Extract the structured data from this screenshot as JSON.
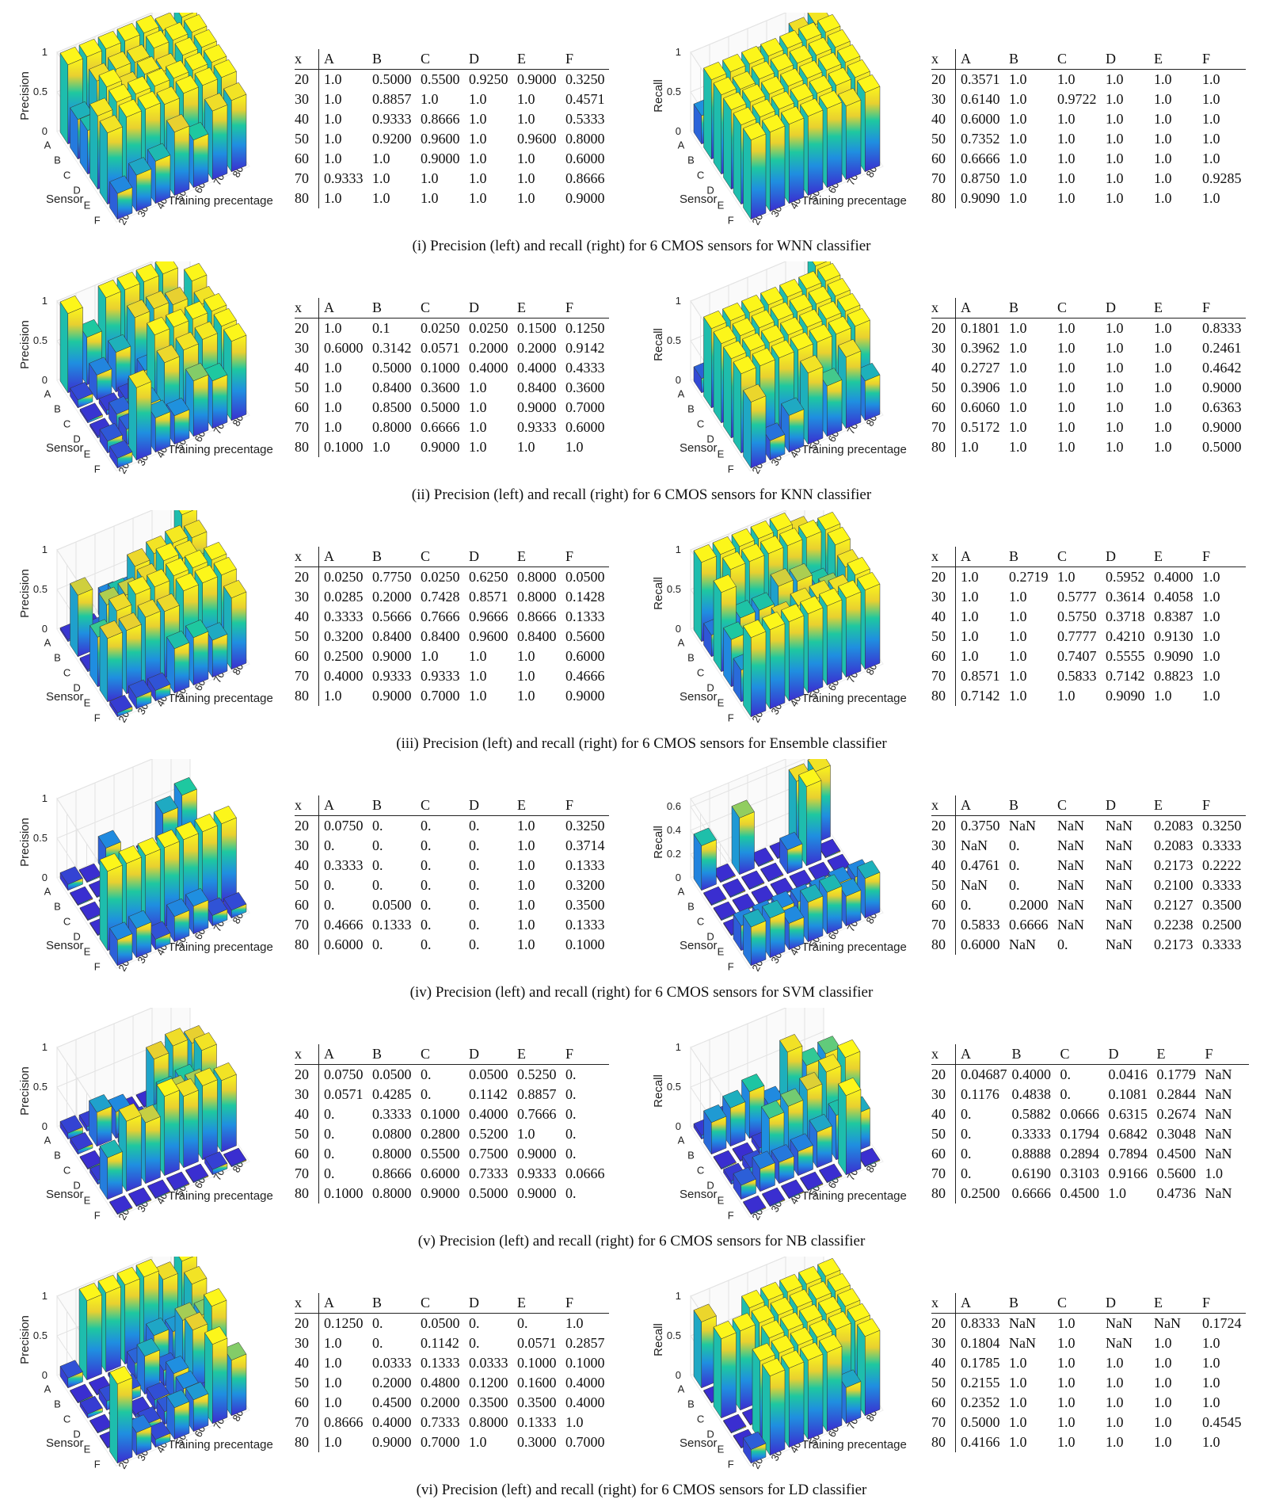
{
  "labels": {
    "sensor_axis": "Sensor",
    "training_axis": "Training precentage",
    "precision_axis": "Precision",
    "recall_axis": "Recall"
  },
  "table_header": [
    "x",
    "A",
    "B",
    "C",
    "D",
    "E",
    "F"
  ],
  "chart_data": [
    {
      "type": "bar3d",
      "classifier": "WNN",
      "caption": "(i) Precision (left) and recall (right) for 6 CMOS sensors for WNN classifier",
      "sensors": [
        "A",
        "B",
        "C",
        "D",
        "E",
        "F"
      ],
      "training": [
        "20",
        "30",
        "40",
        "50",
        "60",
        "70",
        "80"
      ],
      "precision": {
        "zticks": [
          "0",
          "0.5",
          "1"
        ],
        "zmax": 1,
        "rows": [
          [
            "20",
            "1.0",
            "0.5000",
            "0.5500",
            "0.9250",
            "0.9000",
            "0.3250"
          ],
          [
            "30",
            "1.0",
            "0.8857",
            "1.0",
            "1.0",
            "1.0",
            "0.4571"
          ],
          [
            "40",
            "1.0",
            "0.9333",
            "0.8666",
            "1.0",
            "1.0",
            "0.5333"
          ],
          [
            "50",
            "1.0",
            "0.9200",
            "0.9600",
            "1.0",
            "0.9600",
            "0.8000"
          ],
          [
            "60",
            "1.0",
            "1.0",
            "0.9000",
            "1.0",
            "1.0",
            "0.6000"
          ],
          [
            "70",
            "0.9333",
            "1.0",
            "1.0",
            "1.0",
            "1.0",
            "0.8666"
          ],
          [
            "80",
            "1.0",
            "1.0",
            "1.0",
            "1.0",
            "1.0",
            "0.9000"
          ]
        ]
      },
      "recall": {
        "zticks": [
          "0",
          "0.5",
          "1"
        ],
        "zmax": 1,
        "rows": [
          [
            "20",
            "0.3571",
            "1.0",
            "1.0",
            "1.0",
            "1.0",
            "1.0"
          ],
          [
            "30",
            "0.6140",
            "1.0",
            "0.9722",
            "1.0",
            "1.0",
            "1.0"
          ],
          [
            "40",
            "0.6000",
            "1.0",
            "1.0",
            "1.0",
            "1.0",
            "1.0"
          ],
          [
            "50",
            "0.7352",
            "1.0",
            "1.0",
            "1.0",
            "1.0",
            "1.0"
          ],
          [
            "60",
            "0.6666",
            "1.0",
            "1.0",
            "1.0",
            "1.0",
            "1.0"
          ],
          [
            "70",
            "0.8750",
            "1.0",
            "1.0",
            "1.0",
            "1.0",
            "0.9285"
          ],
          [
            "80",
            "0.9090",
            "1.0",
            "1.0",
            "1.0",
            "1.0",
            "1.0"
          ]
        ]
      }
    },
    {
      "type": "bar3d",
      "classifier": "KNN",
      "caption": "(ii) Precision (left) and recall (right) for 6 CMOS sensors for KNN classifier",
      "sensors": [
        "A",
        "B",
        "C",
        "D",
        "E",
        "F"
      ],
      "training": [
        "20",
        "30",
        "40",
        "50",
        "60",
        "70",
        "80"
      ],
      "precision": {
        "zticks": [
          "0",
          "0.5",
          "1"
        ],
        "zmax": 1,
        "rows": [
          [
            "20",
            "1.0",
            "0.1",
            "0.0250",
            "0.0250",
            "0.1500",
            "0.1250"
          ],
          [
            "30",
            "0.6000",
            "0.3142",
            "0.0571",
            "0.2000",
            "0.2000",
            "0.9142"
          ],
          [
            "40",
            "1.0",
            "0.5000",
            "0.1000",
            "0.4000",
            "0.4000",
            "0.4333"
          ],
          [
            "50",
            "1.0",
            "0.8400",
            "0.3600",
            "1.0",
            "0.8400",
            "0.3600"
          ],
          [
            "60",
            "1.0",
            "0.8500",
            "0.5000",
            "1.0",
            "0.9000",
            "0.7000"
          ],
          [
            "70",
            "1.0",
            "0.8000",
            "0.6666",
            "1.0",
            "0.9333",
            "0.6000"
          ],
          [
            "80",
            "0.1000",
            "1.0",
            "0.9000",
            "1.0",
            "1.0",
            "1.0"
          ]
        ]
      },
      "recall": {
        "zticks": [
          "0",
          "0.5",
          "1"
        ],
        "zmax": 1,
        "rows": [
          [
            "20",
            "0.1801",
            "1.0",
            "1.0",
            "1.0",
            "1.0",
            "0.8333"
          ],
          [
            "30",
            "0.3962",
            "1.0",
            "1.0",
            "1.0",
            "1.0",
            "0.2461"
          ],
          [
            "40",
            "0.2727",
            "1.0",
            "1.0",
            "1.0",
            "1.0",
            "0.4642"
          ],
          [
            "50",
            "0.3906",
            "1.0",
            "1.0",
            "1.0",
            "1.0",
            "0.9000"
          ],
          [
            "60",
            "0.6060",
            "1.0",
            "1.0",
            "1.0",
            "1.0",
            "0.6363"
          ],
          [
            "70",
            "0.5172",
            "1.0",
            "1.0",
            "1.0",
            "1.0",
            "0.9000"
          ],
          [
            "80",
            "1.0",
            "1.0",
            "1.0",
            "1.0",
            "1.0",
            "0.5000"
          ]
        ]
      }
    },
    {
      "type": "bar3d",
      "classifier": "Ensemble",
      "caption": "(iii) Precision (left) and recall (right) for 6 CMOS sensors for Ensemble classifier",
      "sensors": [
        "A",
        "B",
        "C",
        "D",
        "E",
        "F"
      ],
      "training": [
        "20",
        "30",
        "40",
        "50",
        "60",
        "70",
        "80"
      ],
      "precision": {
        "zticks": [
          "0",
          "0.5",
          "1"
        ],
        "zmax": 1,
        "rows": [
          [
            "20",
            "0.0250",
            "0.7750",
            "0.0250",
            "0.6250",
            "0.8000",
            "0.0500"
          ],
          [
            "30",
            "0.0285",
            "0.2000",
            "0.7428",
            "0.8571",
            "0.8000",
            "0.1428"
          ],
          [
            "40",
            "0.3333",
            "0.5666",
            "0.7666",
            "0.9666",
            "0.8666",
            "0.1333"
          ],
          [
            "50",
            "0.3200",
            "0.8400",
            "0.8400",
            "0.9600",
            "0.8400",
            "0.5600"
          ],
          [
            "60",
            "0.2500",
            "0.9000",
            "1.0",
            "1.0",
            "1.0",
            "0.6000"
          ],
          [
            "70",
            "0.4000",
            "0.9333",
            "0.9333",
            "1.0",
            "1.0",
            "0.4666"
          ],
          [
            "80",
            "1.0",
            "0.9000",
            "0.7000",
            "1.0",
            "1.0",
            "0.9000"
          ]
        ]
      },
      "recall": {
        "zticks": [
          "0",
          "0.5",
          "1"
        ],
        "zmax": 1,
        "rows": [
          [
            "20",
            "1.0",
            "0.2719",
            "1.0",
            "0.5952",
            "0.4000",
            "1.0"
          ],
          [
            "30",
            "1.0",
            "1.0",
            "0.5777",
            "0.3614",
            "0.4058",
            "1.0"
          ],
          [
            "40",
            "1.0",
            "1.0",
            "0.5750",
            "0.3718",
            "0.8387",
            "1.0"
          ],
          [
            "50",
            "1.0",
            "1.0",
            "0.7777",
            "0.4210",
            "0.9130",
            "1.0"
          ],
          [
            "60",
            "1.0",
            "1.0",
            "0.7407",
            "0.5555",
            "0.9090",
            "1.0"
          ],
          [
            "70",
            "0.8571",
            "1.0",
            "0.5833",
            "0.7142",
            "0.8823",
            "1.0"
          ],
          [
            "80",
            "0.7142",
            "1.0",
            "1.0",
            "0.9090",
            "1.0",
            "1.0"
          ]
        ]
      }
    },
    {
      "type": "bar3d",
      "classifier": "SVM",
      "caption": "(iv) Precision (left) and recall (right) for 6 CMOS sensors for SVM classifier",
      "sensors": [
        "A",
        "B",
        "C",
        "D",
        "E",
        "F"
      ],
      "training": [
        "20",
        "30",
        "40",
        "50",
        "60",
        "70",
        "80"
      ],
      "precision": {
        "zticks": [
          "0",
          "0.5",
          "1"
        ],
        "zmax": 1,
        "rows": [
          [
            "20",
            "0.0750",
            "0.",
            "0.",
            "0.",
            "1.0",
            "0.3250"
          ],
          [
            "30",
            "0.",
            "0.",
            "0.",
            "0.",
            "1.0",
            "0.3714"
          ],
          [
            "40",
            "0.3333",
            "0.",
            "0.",
            "0.",
            "1.0",
            "0.1333"
          ],
          [
            "50",
            "0.",
            "0.",
            "0.",
            "0.",
            "1.0",
            "0.3200"
          ],
          [
            "60",
            "0.",
            "0.0500",
            "0.",
            "0.",
            "1.0",
            "0.3500"
          ],
          [
            "70",
            "0.4666",
            "0.1333",
            "0.",
            "0.",
            "1.0",
            "0.1333"
          ],
          [
            "80",
            "0.6000",
            "0.",
            "0.",
            "0.",
            "1.0",
            "0.1000"
          ]
        ]
      },
      "recall": {
        "zticks": [
          "0",
          "0.2",
          "0.4",
          "0.6"
        ],
        "zmax": 0.6666,
        "rows": [
          [
            "20",
            "0.3750",
            "NaN",
            "NaN",
            "NaN",
            "0.2083",
            "0.3250"
          ],
          [
            "30",
            "NaN",
            "0.",
            "NaN",
            "NaN",
            "0.2083",
            "0.3333"
          ],
          [
            "40",
            "0.4761",
            "0.",
            "NaN",
            "NaN",
            "0.2173",
            "0.2222"
          ],
          [
            "50",
            "NaN",
            "0.",
            "NaN",
            "NaN",
            "0.2100",
            "0.3333"
          ],
          [
            "60",
            "0.",
            "0.2000",
            "NaN",
            "NaN",
            "0.2127",
            "0.3500"
          ],
          [
            "70",
            "0.5833",
            "0.6666",
            "NaN",
            "NaN",
            "0.2238",
            "0.2500"
          ],
          [
            "80",
            "0.6000",
            "NaN",
            "0.",
            "NaN",
            "0.2173",
            "0.3333"
          ]
        ]
      }
    },
    {
      "type": "bar3d",
      "classifier": "NB",
      "caption": "(v) Precision (left) and recall (right) for 6 CMOS sensors for NB classifier",
      "sensors": [
        "A",
        "B",
        "C",
        "D",
        "E",
        "F"
      ],
      "training": [
        "20",
        "30",
        "40",
        "50",
        "60",
        "70",
        "80"
      ],
      "precision": {
        "zticks": [
          "0",
          "0.5",
          "1"
        ],
        "zmax": 1,
        "rows": [
          [
            "20",
            "0.0750",
            "0.0500",
            "0.",
            "0.0500",
            "0.5250",
            "0."
          ],
          [
            "30",
            "0.0571",
            "0.4285",
            "0.",
            "0.1142",
            "0.8857",
            "0."
          ],
          [
            "40",
            "0.",
            "0.3333",
            "0.1000",
            "0.4000",
            "0.7666",
            "0."
          ],
          [
            "50",
            "0.",
            "0.0800",
            "0.2800",
            "0.5200",
            "1.0",
            "0."
          ],
          [
            "60",
            "0.",
            "0.8000",
            "0.5500",
            "0.7500",
            "0.9000",
            "0."
          ],
          [
            "70",
            "0.",
            "0.8666",
            "0.6000",
            "0.7333",
            "0.9333",
            "0.0666"
          ],
          [
            "80",
            "0.1000",
            "0.8000",
            "0.9000",
            "0.5000",
            "0.9000",
            "0."
          ]
        ]
      },
      "recall": {
        "zticks": [
          "0",
          "0.5",
          "1"
        ],
        "zmax": 1,
        "rows": [
          [
            "20",
            "0.04687",
            "0.4000",
            "0.",
            "0.0416",
            "0.1779",
            "NaN"
          ],
          [
            "30",
            "0.1176",
            "0.4838",
            "0.",
            "0.1081",
            "0.2844",
            "NaN"
          ],
          [
            "40",
            "0.",
            "0.5882",
            "0.0666",
            "0.6315",
            "0.2674",
            "NaN"
          ],
          [
            "50",
            "0.",
            "0.3333",
            "0.1794",
            "0.6842",
            "0.3048",
            "NaN"
          ],
          [
            "60",
            "0.",
            "0.8888",
            "0.2894",
            "0.7894",
            "0.4500",
            "NaN"
          ],
          [
            "70",
            "0.",
            "0.6190",
            "0.3103",
            "0.9166",
            "0.5600",
            "1.0"
          ],
          [
            "80",
            "0.2500",
            "0.6666",
            "0.4500",
            "1.0",
            "0.4736",
            "NaN"
          ]
        ]
      }
    },
    {
      "type": "bar3d",
      "classifier": "LD",
      "caption": "(vi) Precision (left) and recall (right) for 6 CMOS sensors for LD classifier",
      "sensors": [
        "A",
        "B",
        "C",
        "D",
        "E",
        "F"
      ],
      "training": [
        "20",
        "30",
        "40",
        "50",
        "60",
        "70",
        "80"
      ],
      "precision": {
        "zticks": [
          "0",
          "0.5",
          "1"
        ],
        "zmax": 1,
        "rows": [
          [
            "20",
            "0.1250",
            "0.",
            "0.0500",
            "0.",
            "0.",
            "1.0"
          ],
          [
            "30",
            "1.0",
            "0.",
            "0.1142",
            "0.",
            "0.0571",
            "0.2857"
          ],
          [
            "40",
            "1.0",
            "0.0333",
            "0.1333",
            "0.0333",
            "0.1000",
            "0.1000"
          ],
          [
            "50",
            "1.0",
            "0.2000",
            "0.4800",
            "0.1200",
            "0.1600",
            "0.4000"
          ],
          [
            "60",
            "1.0",
            "0.4500",
            "0.2000",
            "0.3500",
            "0.3500",
            "0.4000"
          ],
          [
            "70",
            "0.8666",
            "0.4000",
            "0.7333",
            "0.8000",
            "0.1333",
            "1.0"
          ],
          [
            "80",
            "1.0",
            "0.9000",
            "0.7000",
            "1.0",
            "0.3000",
            "0.7000"
          ]
        ]
      },
      "recall": {
        "zticks": [
          "0",
          "0.5",
          "1"
        ],
        "zmax": 1,
        "rows": [
          [
            "20",
            "0.8333",
            "NaN",
            "1.0",
            "NaN",
            "NaN",
            "0.1724"
          ],
          [
            "30",
            "0.1804",
            "NaN",
            "1.0",
            "NaN",
            "1.0",
            "1.0"
          ],
          [
            "40",
            "0.1785",
            "1.0",
            "1.0",
            "1.0",
            "1.0",
            "1.0"
          ],
          [
            "50",
            "0.2155",
            "1.0",
            "1.0",
            "1.0",
            "1.0",
            "1.0"
          ],
          [
            "60",
            "0.2352",
            "1.0",
            "1.0",
            "1.0",
            "1.0",
            "1.0"
          ],
          [
            "70",
            "0.5000",
            "1.0",
            "1.0",
            "1.0",
            "1.0",
            "0.4545"
          ],
          [
            "80",
            "0.4166",
            "1.0",
            "1.0",
            "1.0",
            "1.0",
            "1.0"
          ]
        ]
      }
    }
  ]
}
